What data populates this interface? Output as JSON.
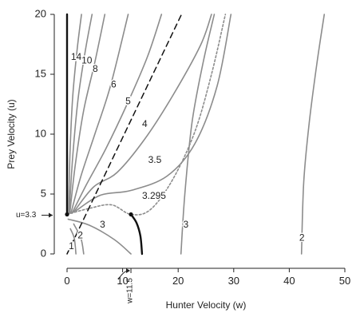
{
  "chart_data": {
    "type": "line",
    "xlabel": "Hunter Velocity (w)",
    "ylabel": "Prey Velocity (u)",
    "xlim": [
      0,
      50
    ],
    "ylim": [
      0,
      20
    ],
    "x_ticks": [
      0,
      10,
      20,
      30,
      40,
      50
    ],
    "y_ticks": [
      0,
      5,
      10,
      15,
      20
    ],
    "x_tick_labels": [
      "0",
      "10",
      "20",
      "30",
      "40",
      "50"
    ],
    "y_tick_labels": [
      "0",
      "5",
      "10",
      "15",
      "20"
    ],
    "grid": false,
    "legend": "none",
    "annotations": {
      "u_marker_label": "u=3.3",
      "u_marker_value": 3.3,
      "w_marker_label": "w=11.5",
      "w_marker_value": 11.5
    },
    "colors": {
      "contour": "#8c8c8c",
      "threshold": "#111111",
      "axis": "#222222"
    },
    "series": [
      {
        "name": "14",
        "style": "solid",
        "points": [
          [
            0.3,
            3.4
          ],
          [
            0.5,
            8
          ],
          [
            1,
            13
          ],
          [
            1.8,
            17
          ],
          [
            2.6,
            20
          ]
        ]
      },
      {
        "name": "10",
        "style": "solid",
        "points": [
          [
            0.4,
            3.4
          ],
          [
            1,
            8
          ],
          [
            2,
            13
          ],
          [
            3.3,
            17
          ],
          [
            4.5,
            20
          ]
        ]
      },
      {
        "name": "8",
        "style": "solid",
        "points": [
          [
            0.5,
            3.4
          ],
          [
            1.5,
            7.5
          ],
          [
            3,
            12
          ],
          [
            5,
            16
          ],
          [
            6.8,
            20
          ]
        ]
      },
      {
        "name": "6",
        "style": "solid",
        "points": [
          [
            0.7,
            3.4
          ],
          [
            2.5,
            6.5
          ],
          [
            5,
            10
          ],
          [
            7.8,
            14
          ],
          [
            11,
            20
          ]
        ]
      },
      {
        "name": "5",
        "style": "solid",
        "points": [
          [
            0.9,
            3.4
          ],
          [
            3.5,
            5.8
          ],
          [
            7,
            8.8
          ],
          [
            11,
            12.7
          ],
          [
            14.5,
            16.5
          ],
          [
            17,
            20
          ]
        ]
      },
      {
        "name": "4",
        "style": "solid",
        "points": [
          [
            1.2,
            3.5
          ],
          [
            4.8,
            5.6
          ],
          [
            9,
            6.8
          ],
          [
            14,
            9.6
          ],
          [
            19,
            13.2
          ],
          [
            24,
            17.4
          ],
          [
            26,
            20
          ]
        ]
      },
      {
        "name": "3.5",
        "style": "solid",
        "points": [
          [
            1.6,
            3.6
          ],
          [
            6,
            4.9
          ],
          [
            11.5,
            5.3
          ],
          [
            18,
            6.5
          ],
          [
            23,
            9.2
          ],
          [
            27,
            14
          ],
          [
            29.5,
            20
          ]
        ]
      },
      {
        "name": "3.295",
        "style": "dotted",
        "points": [
          [
            0,
            3.3
          ],
          [
            4,
            3.8
          ],
          [
            8,
            4.1
          ],
          [
            11.5,
            3.3
          ],
          [
            15,
            3.7
          ],
          [
            19,
            6.2
          ],
          [
            23,
            10.2
          ],
          [
            26,
            15
          ],
          [
            28.5,
            20
          ]
        ]
      },
      {
        "name": "3",
        "style": "solid",
        "points": [
          [
            0.2,
            2.9
          ],
          [
            4,
            2.4
          ],
          [
            8.5,
            1.2
          ],
          [
            11.5,
            0
          ]
        ]
      },
      {
        "name": "3",
        "style": "solid",
        "points": [
          [
            20.5,
            0
          ],
          [
            21.2,
            5
          ],
          [
            22.5,
            11
          ],
          [
            24.5,
            16
          ],
          [
            26.5,
            20
          ]
        ]
      },
      {
        "name": "2",
        "style": "solid",
        "points": [
          [
            1.2,
            2.5
          ],
          [
            2.5,
            1.3
          ],
          [
            3,
            0
          ]
        ]
      },
      {
        "name": "2",
        "style": "solid",
        "points": [
          [
            42.2,
            0
          ],
          [
            42.6,
            6
          ],
          [
            43.6,
            11
          ],
          [
            45,
            16
          ],
          [
            46.3,
            20
          ]
        ]
      },
      {
        "name": "1",
        "style": "solid",
        "points": [
          [
            0.6,
            2.1
          ],
          [
            1.3,
            1.3
          ],
          [
            1.6,
            0
          ]
        ]
      },
      {
        "name": "",
        "style": "threshold",
        "points": [
          [
            0,
            3.3
          ],
          [
            0,
            20
          ]
        ]
      },
      {
        "name": "",
        "style": "threshold",
        "points": [
          [
            11.5,
            3.3
          ],
          [
            12.5,
            2.6
          ],
          [
            13.2,
            1.5
          ],
          [
            13.5,
            0
          ]
        ]
      },
      {
        "name": "",
        "style": "dashed",
        "points": [
          [
            0,
            0
          ],
          [
            20.6,
            20
          ]
        ]
      }
    ],
    "curve_labels": [
      {
        "text": "14",
        "x": 0.7,
        "y": 16.4
      },
      {
        "text": "10",
        "x": 2.6,
        "y": 16.1
      },
      {
        "text": "8",
        "x": 4.6,
        "y": 15.4
      },
      {
        "text": "6",
        "x": 7.9,
        "y": 14.1
      },
      {
        "text": "5",
        "x": 10.5,
        "y": 12.7
      },
      {
        "text": "4",
        "x": 13.5,
        "y": 10.8
      },
      {
        "text": "3.5",
        "x": 14.6,
        "y": 7.8
      },
      {
        "text": "3.295",
        "x": 13.5,
        "y": 4.8
      },
      {
        "text": "3",
        "x": 5.9,
        "y": 2.4
      },
      {
        "text": "3",
        "x": 20.9,
        "y": 2.4
      },
      {
        "text": "2",
        "x": 1.9,
        "y": 1.5
      },
      {
        "text": "2",
        "x": 41.8,
        "y": 1.3
      },
      {
        "text": "1",
        "x": 0.3,
        "y": 0.6
      }
    ],
    "points": [
      {
        "x": 0,
        "y": 3.3
      },
      {
        "x": 11.5,
        "y": 3.3
      }
    ]
  }
}
